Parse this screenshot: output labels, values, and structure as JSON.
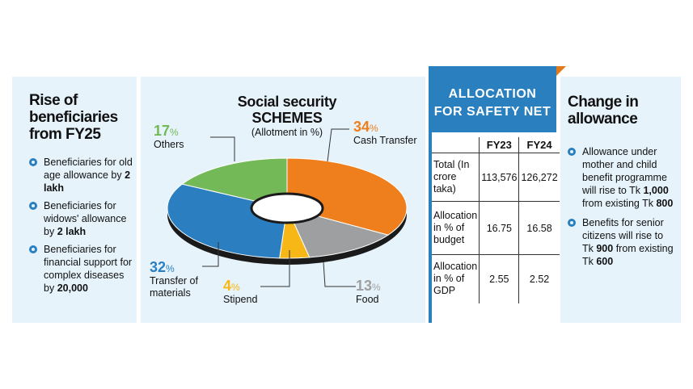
{
  "left": {
    "title": "Rise of beneficiaries from FY25",
    "bullets": [
      {
        "pre": "Beneficiaries for old age allowance by ",
        "bold": "2 lakh",
        "post": ""
      },
      {
        "pre": "Beneficiaries for widows' allowance by ",
        "bold": "2 lakh",
        "post": ""
      },
      {
        "pre": "Beneficiaries for financial support for complex diseases by ",
        "bold": "20,000",
        "post": ""
      }
    ]
  },
  "chart_data": {
    "type": "pie",
    "title": "Social security SCHEMES",
    "subtitle": "(Allotment in %)",
    "categories": [
      "Cash Transfer",
      "Food",
      "Stipend",
      "Transfer of materials",
      "Others"
    ],
    "values": [
      34,
      13,
      4,
      32,
      17
    ],
    "colors": [
      "#ee7f1c",
      "#9d9fa1",
      "#f7b716",
      "#2b7fc1",
      "#73b957"
    ],
    "donut": true,
    "pct_suffix": "%"
  },
  "allocation": {
    "title_line1": "ALLOCATION",
    "title_line2": "FOR SAFETY NET",
    "columns": [
      "FY23",
      "FY24"
    ],
    "rows": [
      {
        "label": "Total (In crore taka)",
        "values": [
          "113,576",
          "126,272"
        ]
      },
      {
        "label": "Allocation in % of budget",
        "values": [
          "16.75",
          "16.58"
        ]
      },
      {
        "label": "Allocation in % of GDP",
        "values": [
          "2.55",
          "2.52"
        ]
      }
    ]
  },
  "right": {
    "title": "Change in allowance",
    "bullets": [
      {
        "pre": "Allowance under mother and child benefit programme will rise to Tk ",
        "bold": "1,000",
        "mid": " from existing Tk ",
        "bold2": "800"
      },
      {
        "pre": "Benefits for senior citizens will rise to Tk ",
        "bold": "900",
        "mid": " from existing Tk ",
        "bold2": "600"
      }
    ]
  },
  "colors": {
    "panel": "#e6f3fb",
    "accent": "#2a7fbf",
    "fold": "#e07a1a"
  }
}
